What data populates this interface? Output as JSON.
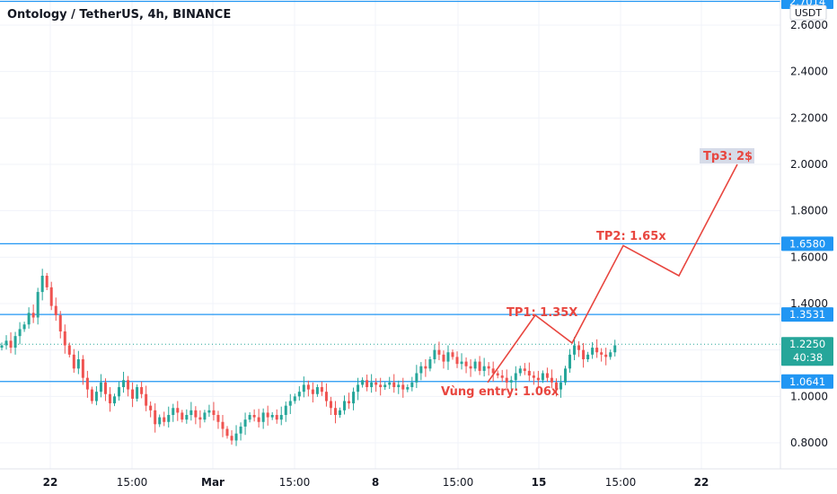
{
  "chart_data": {
    "type": "candlestick",
    "title": "Ontology / TetherUS, 4h, BINANCE",
    "currency": "USDT",
    "y_axis": {
      "ticks": [
        0.8,
        1.0,
        1.2,
        1.4,
        1.6,
        1.8,
        2.0,
        2.2,
        2.4,
        2.6
      ],
      "tick_labels": [
        "0.8000",
        "1.0000",
        "1.2000",
        "1.4000",
        "1.6000",
        "1.8000",
        "2.0000",
        "2.2000",
        "2.4000",
        "2.6000"
      ],
      "top_value_label": "2.7014"
    },
    "x_axis": {
      "tick_labels": [
        "22",
        "15:00",
        "Mar",
        "15:00",
        "8",
        "15:00",
        "15",
        "15:00",
        "22"
      ]
    },
    "levels": [
      {
        "value": 2.7014,
        "label": "2.7014"
      },
      {
        "value": 1.658,
        "label": "1.6580"
      },
      {
        "value": 1.3531,
        "label": "1.3531"
      },
      {
        "value": 1.0641,
        "label": "1.0641"
      }
    ],
    "last_price": {
      "value": 1.225,
      "label": "1.2250",
      "countdown": "40:38"
    },
    "annotations": [
      {
        "text": "TP1: 1.35X"
      },
      {
        "text": "TP2: 1.65x"
      },
      {
        "text": "Tp3: 2$"
      },
      {
        "text": "Vùng entry: 1.06x"
      }
    ],
    "projection_path": [
      1.06,
      1.35,
      1.23,
      1.65,
      1.52,
      2.0
    ],
    "colors": {
      "up": "#26a69a",
      "down": "#ef5350",
      "level": "#2196f3",
      "projection": "#e8463f",
      "last_price": "#26a69a"
    },
    "closes": [
      1.22,
      1.24,
      1.21,
      1.26,
      1.29,
      1.31,
      1.36,
      1.34,
      1.45,
      1.52,
      1.47,
      1.39,
      1.35,
      1.28,
      1.22,
      1.18,
      1.12,
      1.16,
      1.08,
      1.03,
      0.98,
      1.02,
      1.06,
      1.01,
      0.97,
      1.0,
      1.04,
      1.07,
      1.03,
      0.99,
      1.04,
      1.01,
      0.96,
      0.94,
      0.88,
      0.91,
      0.89,
      0.92,
      0.95,
      0.93,
      0.9,
      0.92,
      0.94,
      0.91,
      0.9,
      0.93,
      0.94,
      0.92,
      0.89,
      0.86,
      0.83,
      0.81,
      0.84,
      0.87,
      0.9,
      0.92,
      0.91,
      0.89,
      0.93,
      0.91,
      0.92,
      0.9,
      0.92,
      0.96,
      0.98,
      1.0,
      1.02,
      1.05,
      1.03,
      1.01,
      1.04,
      1.02,
      0.98,
      0.95,
      0.92,
      0.94,
      0.98,
      0.97,
      1.02,
      1.05,
      1.07,
      1.04,
      1.06,
      1.05,
      1.04,
      1.05,
      1.06,
      1.04,
      1.05,
      1.03,
      1.04,
      1.06,
      1.1,
      1.13,
      1.12,
      1.16,
      1.2,
      1.18,
      1.15,
      1.19,
      1.17,
      1.14,
      1.15,
      1.13,
      1.12,
      1.15,
      1.11,
      1.13,
      1.12,
      1.1,
      1.09,
      1.08,
      1.06,
      1.07,
      1.1,
      1.12,
      1.11,
      1.09,
      1.08,
      1.07,
      1.1,
      1.08,
      1.06,
      1.03,
      1.06,
      1.12,
      1.18,
      1.22,
      1.2,
      1.16,
      1.18,
      1.21,
      1.19,
      1.18,
      1.17,
      1.19,
      1.22
    ]
  }
}
